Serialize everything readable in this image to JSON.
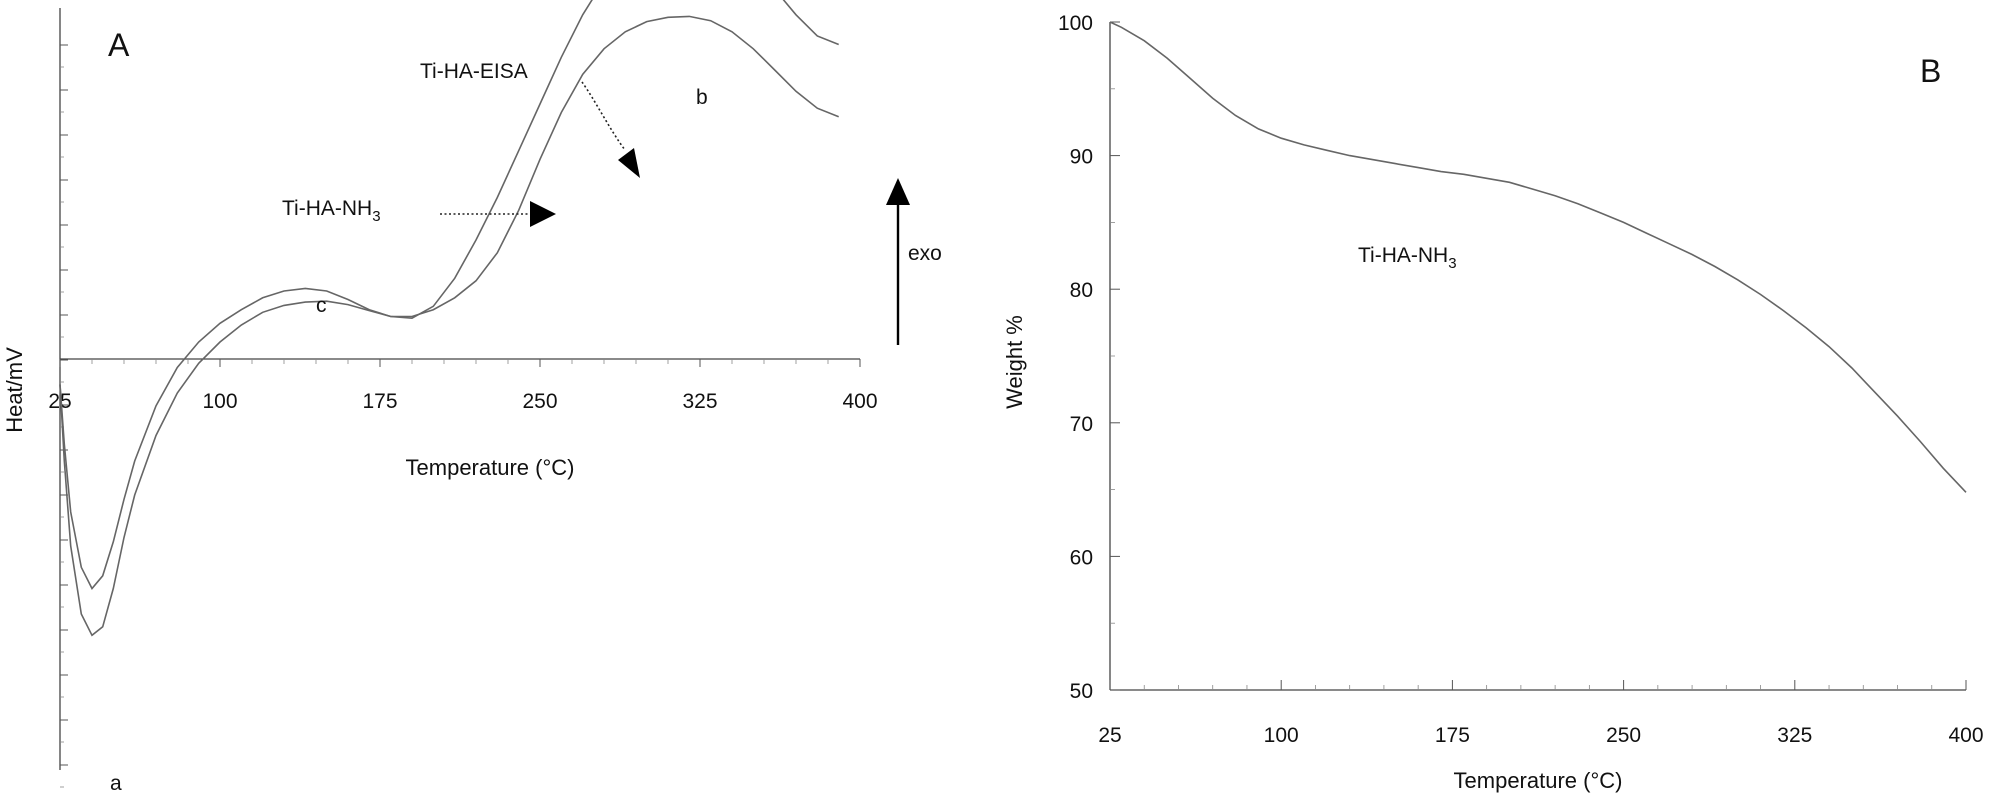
{
  "chart_data": [
    {
      "type": "line",
      "panel_label": "A",
      "xlabel": "Temperature (°C)",
      "ylabel": "Heat/mV",
      "xlim": [
        25,
        400
      ],
      "x_ticks": [
        "25",
        "100",
        "175",
        "250",
        "325",
        "400"
      ],
      "y_ticks_labeled": false,
      "exo_label": "exo",
      "series": [
        {
          "name": "Ti-HA-EISA",
          "x": [
            25,
            27,
            30,
            35,
            40,
            45,
            50,
            55,
            60,
            70,
            80,
            90,
            100,
            110,
            120,
            130,
            140,
            150,
            160,
            170,
            180,
            190,
            200,
            210,
            220,
            230,
            240,
            250,
            260,
            270,
            280,
            290,
            300,
            310,
            320,
            330,
            340,
            350,
            360,
            370,
            380,
            390
          ],
          "y": [
            -0.3,
            -1.2,
            -2.2,
            -3.0,
            -3.25,
            -3.15,
            -2.7,
            -2.1,
            -1.6,
            -0.9,
            -0.4,
            -0.05,
            0.2,
            0.4,
            0.55,
            0.63,
            0.67,
            0.68,
            0.64,
            0.57,
            0.5,
            0.48,
            0.62,
            0.95,
            1.4,
            1.9,
            2.45,
            3.0,
            3.55,
            4.05,
            4.45,
            4.75,
            4.95,
            5.05,
            5.1,
            5.05,
            4.9,
            4.65,
            4.35,
            4.05,
            3.8,
            3.7
          ]
        },
        {
          "name": "Ti-HA-NH3",
          "display_name": "Ti-HA-NH",
          "name_subscript": "3",
          "x": [
            25,
            27,
            30,
            35,
            40,
            45,
            50,
            55,
            60,
            70,
            80,
            90,
            100,
            110,
            120,
            130,
            140,
            150,
            160,
            170,
            180,
            190,
            200,
            210,
            220,
            230,
            240,
            250,
            260,
            270,
            280,
            290,
            300,
            310,
            320,
            330,
            340,
            350,
            360,
            370,
            380,
            390
          ],
          "y": [
            -0.3,
            -1.0,
            -1.8,
            -2.45,
            -2.7,
            -2.55,
            -2.15,
            -1.65,
            -1.2,
            -0.55,
            -0.1,
            0.2,
            0.42,
            0.58,
            0.72,
            0.8,
            0.83,
            0.8,
            0.7,
            0.58,
            0.5,
            0.5,
            0.58,
            0.72,
            0.92,
            1.25,
            1.75,
            2.35,
            2.9,
            3.35,
            3.65,
            3.85,
            3.97,
            4.02,
            4.03,
            3.98,
            3.85,
            3.65,
            3.4,
            3.15,
            2.95,
            2.85
          ]
        }
      ],
      "annotations": [
        {
          "text": "a",
          "at": [
            44,
            -3.3
          ]
        },
        {
          "text": "b",
          "at": [
            325,
            5.1
          ]
        },
        {
          "text": "c",
          "at": [
            148,
            0.85
          ]
        }
      ]
    },
    {
      "type": "line",
      "panel_label": "B",
      "xlabel": "Temperature (°C)",
      "ylabel": "Weight %",
      "xlim": [
        25,
        400
      ],
      "ylim": [
        50,
        100
      ],
      "x_ticks": [
        "25",
        "100",
        "175",
        "250",
        "325",
        "400"
      ],
      "y_ticks": [
        "50",
        "60",
        "70",
        "80",
        "90",
        "100"
      ],
      "series": [
        {
          "name": "Ti-HA-NH3",
          "display_name": "Ti-HA-NH",
          "name_subscript": "3",
          "x": [
            25,
            30,
            40,
            50,
            60,
            70,
            80,
            90,
            100,
            110,
            120,
            130,
            140,
            150,
            160,
            170,
            180,
            190,
            200,
            210,
            220,
            230,
            240,
            250,
            260,
            270,
            280,
            290,
            300,
            310,
            320,
            330,
            340,
            350,
            360,
            370,
            380,
            390,
            400
          ],
          "y": [
            100,
            99.6,
            98.6,
            97.3,
            95.8,
            94.3,
            93.0,
            92.0,
            91.3,
            90.8,
            90.4,
            90.0,
            89.7,
            89.4,
            89.1,
            88.8,
            88.6,
            88.3,
            88.0,
            87.5,
            87.0,
            86.4,
            85.7,
            85.0,
            84.2,
            83.4,
            82.6,
            81.7,
            80.7,
            79.6,
            78.4,
            77.1,
            75.7,
            74.1,
            72.3,
            70.5,
            68.6,
            66.6,
            64.8
          ]
        }
      ]
    }
  ]
}
